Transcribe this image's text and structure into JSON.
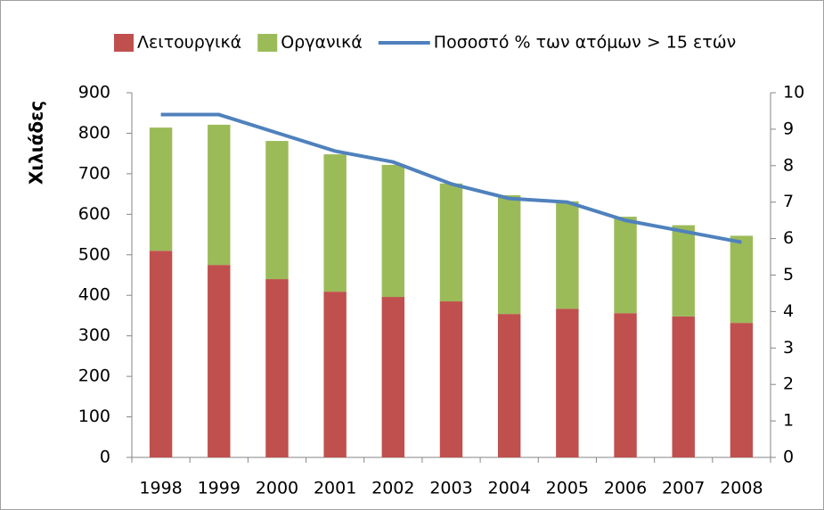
{
  "chart_data": {
    "type": "bar-line",
    "y_label": "Χιλιάδες",
    "categories": [
      "1998",
      "1999",
      "2000",
      "2001",
      "2002",
      "2003",
      "2004",
      "2005",
      "2006",
      "2007",
      "2008"
    ],
    "series": [
      {
        "name": "Λειτουργικά",
        "color": "#c0504d",
        "type": "bar",
        "values": [
          510,
          475,
          440,
          409,
          396,
          385,
          354,
          367,
          356,
          348,
          332
        ]
      },
      {
        "name": "Οργανικά",
        "color": "#9bbb59",
        "type": "bar",
        "values": [
          304,
          346,
          341,
          339,
          326,
          291,
          293,
          265,
          238,
          225,
          215
        ]
      },
      {
        "name": "Ποσοστό % των ατόμων > 15 ετών",
        "color": "#4f81bd",
        "type": "line",
        "axis": "y2",
        "values": [
          9.4,
          9.4,
          8.9,
          8.4,
          8.1,
          7.5,
          7.1,
          7.0,
          6.5,
          6.2,
          5.9
        ]
      }
    ],
    "stacked": true,
    "ylim": [
      0,
      900
    ],
    "yticks": [
      0,
      100,
      200,
      300,
      400,
      500,
      600,
      700,
      800,
      900
    ],
    "y2lim": [
      0,
      10
    ],
    "y2ticks": [
      0,
      1,
      2,
      3,
      4,
      5,
      6,
      7,
      8,
      9,
      10
    ],
    "legend": "top",
    "grid": false
  }
}
